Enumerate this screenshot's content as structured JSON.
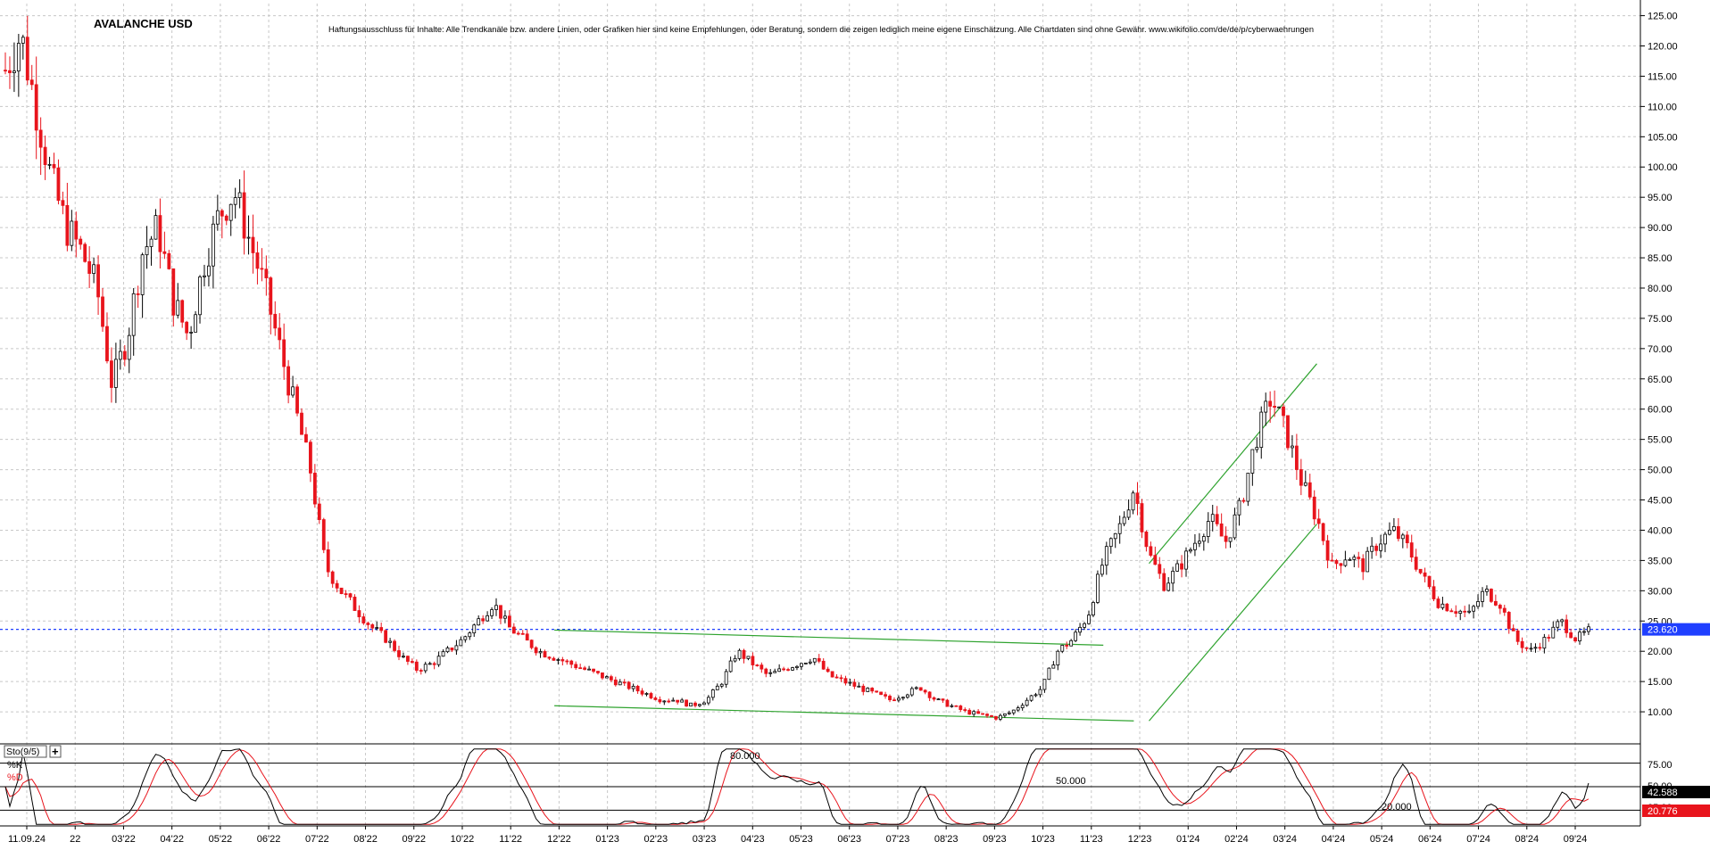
{
  "title": "AVALANCHE USD",
  "disclaimer": "Haftungsausschluss für Inhalte: Alle Trendkanäle bzw. andere Linien, oder Grafiken hier sind keine Empfehlungen, oder Beratung, sondern die zeigen lediglich meine eigene Einschätzung. Alle Chartdaten sind ohne Gewähr. www.wikifolio.com/de/de/p/cyberwaehrungen",
  "price_label": "23.620",
  "indicator": {
    "name": "Sto(9/5)",
    "plus_label": "+",
    "k_label": "%K",
    "d_label": "%D",
    "k_value": "42.588",
    "d_value": "20.776",
    "level_labels": [
      "80.000",
      "50.000",
      "20.000"
    ],
    "axis_labels": [
      "75.00",
      "50.00",
      "25.00"
    ]
  },
  "colors": {
    "up": "#000000",
    "down": "#e8141c",
    "trend": "#2fa32f",
    "price_line": "#1f3fff",
    "grid": "#c8c8c8",
    "k_line": "#000000",
    "d_line": "#e8141c"
  },
  "chart_data": [
    {
      "type": "candlestick",
      "title": "AVALANCHE USD",
      "y_ticks": [
        "125.00",
        "120.00",
        "115.00",
        "110.00",
        "105.00",
        "100.00",
        "95.00",
        "90.00",
        "85.00",
        "80.00",
        "75.00",
        "70.00",
        "65.00",
        "60.00",
        "55.00",
        "50.00",
        "45.00",
        "40.00",
        "35.00",
        "30.00",
        "25.00",
        "20.00",
        "15.00",
        "10.00"
      ],
      "ylim": [
        5,
        127
      ],
      "x_ticks": [
        "11.09.24",
        "22",
        "03'22",
        "04'22",
        "05'22",
        "06'22",
        "07'22",
        "08'22",
        "09'22",
        "10'22",
        "11'22",
        "12'22",
        "01'23",
        "02'23",
        "03'23",
        "04'23",
        "05'23",
        "06'23",
        "07'23",
        "08'23",
        "09'23",
        "10'23",
        "11'23",
        "12'23",
        "01'24",
        "02'24",
        "03'24",
        "04'24",
        "05'24",
        "06'24",
        "07'24",
        "08'24",
        "09'24"
      ],
      "current_price": 23.62,
      "approx_close_path": [
        [
          0,
          116
        ],
        [
          1,
          122
        ],
        [
          2,
          110
        ],
        [
          3,
          98
        ],
        [
          4,
          90
        ],
        [
          5,
          86
        ],
        [
          6,
          80
        ],
        [
          7,
          64
        ],
        [
          8,
          72
        ],
        [
          9,
          86
        ],
        [
          10,
          90
        ],
        [
          11,
          78
        ],
        [
          12,
          72
        ],
        [
          13,
          84
        ],
        [
          14,
          92
        ],
        [
          15,
          96
        ],
        [
          16,
          88
        ],
        [
          17,
          80
        ],
        [
          18,
          70
        ],
        [
          19,
          60
        ],
        [
          20,
          50
        ],
        [
          21,
          34
        ],
        [
          22,
          30
        ],
        [
          23,
          27
        ],
        [
          24,
          24
        ],
        [
          25,
          22
        ],
        [
          26,
          19
        ],
        [
          27,
          17
        ],
        [
          28,
          18
        ],
        [
          29,
          20
        ],
        [
          30,
          22
        ],
        [
          31,
          25
        ],
        [
          32,
          28
        ],
        [
          33,
          24
        ],
        [
          34,
          22
        ],
        [
          35,
          20
        ],
        [
          36,
          19
        ],
        [
          37,
          18
        ],
        [
          38,
          17
        ],
        [
          39,
          16
        ],
        [
          40,
          15
        ],
        [
          41,
          14
        ],
        [
          42,
          13
        ],
        [
          43,
          12
        ],
        [
          44,
          12
        ],
        [
          45,
          11
        ],
        [
          46,
          12
        ],
        [
          47,
          15
        ],
        [
          48,
          20
        ],
        [
          49,
          18
        ],
        [
          50,
          16
        ],
        [
          51,
          17
        ],
        [
          52,
          18
        ],
        [
          53,
          19
        ],
        [
          54,
          16
        ],
        [
          55,
          15
        ],
        [
          56,
          14
        ],
        [
          57,
          13
        ],
        [
          58,
          12
        ],
        [
          59,
          13
        ],
        [
          60,
          14
        ],
        [
          61,
          12
        ],
        [
          62,
          11
        ],
        [
          63,
          10
        ],
        [
          64,
          9.5
        ],
        [
          65,
          9
        ],
        [
          66,
          10
        ],
        [
          67,
          12
        ],
        [
          68,
          14
        ],
        [
          69,
          20
        ],
        [
          70,
          22
        ],
        [
          71,
          26
        ],
        [
          72,
          35
        ],
        [
          73,
          40
        ],
        [
          74,
          47
        ],
        [
          75,
          36
        ],
        [
          76,
          31
        ],
        [
          77,
          34
        ],
        [
          78,
          38
        ],
        [
          79,
          42
        ],
        [
          80,
          38
        ],
        [
          81,
          44
        ],
        [
          82,
          55
        ],
        [
          83,
          62
        ],
        [
          84,
          56
        ],
        [
          85,
          48
        ],
        [
          86,
          42
        ],
        [
          87,
          34
        ],
        [
          88,
          36
        ],
        [
          89,
          34
        ],
        [
          90,
          38
        ],
        [
          91,
          40
        ],
        [
          92,
          37
        ],
        [
          93,
          32
        ],
        [
          94,
          28
        ],
        [
          95,
          27
        ],
        [
          96,
          26
        ],
        [
          97,
          30
        ],
        [
          98,
          28
        ],
        [
          99,
          22
        ],
        [
          100,
          20
        ],
        [
          101,
          22
        ],
        [
          102,
          25
        ],
        [
          103,
          22
        ],
        [
          104,
          23.62
        ]
      ],
      "trendlines": [
        {
          "name": "upper-channel",
          "from": [
            75,
            34.5
          ],
          "to": [
            86,
            67.5
          ]
        },
        {
          "name": "lower-channel",
          "from": [
            75,
            8.5
          ],
          "to": [
            86,
            41
          ]
        },
        {
          "name": "wedge-upper",
          "from": [
            36,
            23.5
          ],
          "to": [
            72,
            21
          ]
        },
        {
          "name": "wedge-lower",
          "from": [
            36,
            11
          ],
          "to": [
            74,
            8.5
          ]
        }
      ]
    },
    {
      "type": "line",
      "title": "Sto(9/5)",
      "ylim": [
        0,
        100
      ],
      "levels": [
        80,
        50,
        20
      ],
      "series": [
        {
          "name": "%K",
          "last": 42.588
        },
        {
          "name": "%D",
          "last": 20.776
        }
      ]
    }
  ]
}
